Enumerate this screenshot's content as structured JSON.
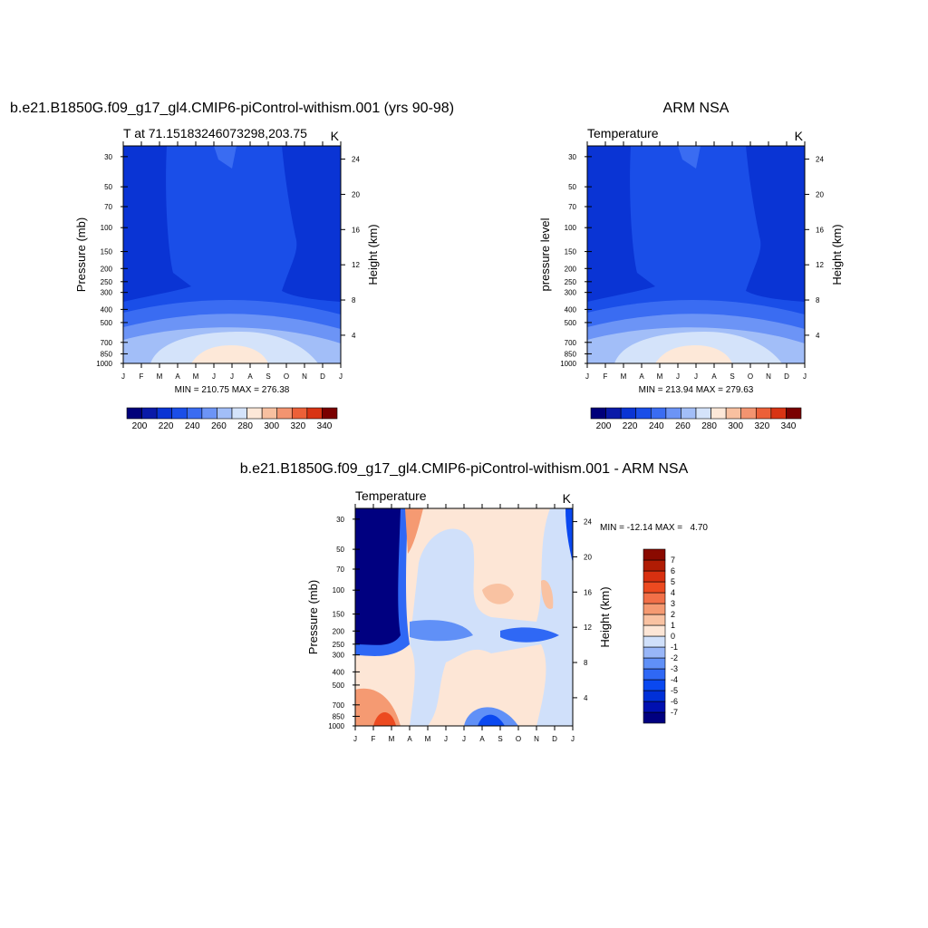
{
  "chart_data": [
    {
      "type": "contour",
      "title": "b.e21.B1850G.f09_g17_gl4.CMIP6-piControl-withism.001 (yrs 90-98)",
      "subtitle": "T at 71.15183246073298,203.75",
      "units": "K",
      "ylabel": "Pressure (mb)",
      "y2label": "Height (km)",
      "ylog": true,
      "ylim": [
        1000,
        25
      ],
      "yticks": [
        30,
        50,
        70,
        100,
        150,
        200,
        250,
        300,
        400,
        500,
        700,
        850,
        1000
      ],
      "y2lim": [
        0.8,
        25.5
      ],
      "y2ticks": [
        4,
        8,
        12,
        16,
        20,
        24
      ],
      "categories": [
        "J",
        "F",
        "M",
        "A",
        "M",
        "J",
        "J",
        "A",
        "S",
        "O",
        "N",
        "D",
        "J"
      ],
      "stats": "MIN = 210.75 MAX = 276.38",
      "colorbar": {
        "orientation": "horizontal",
        "labels": [
          200,
          220,
          240,
          260,
          280,
          300,
          320,
          340
        ],
        "colors": [
          "#00007a",
          "#0a1aa8",
          "#0a34d4",
          "#1a4ee8",
          "#3a6cf2",
          "#6c94f6",
          "#a2bef8",
          "#d4e3fa",
          "#fde8d8",
          "#f8c0a0",
          "#f39470",
          "#ec6038",
          "#d83414",
          "#7a0000"
        ]
      }
    },
    {
      "type": "contour",
      "title": "ARM NSA",
      "subtitle": "Temperature",
      "units": "K",
      "ylabel": "pressure level",
      "y2label": "Height (km)",
      "ylog": true,
      "ylim": [
        1000,
        25
      ],
      "yticks": [
        30,
        50,
        70,
        100,
        150,
        200,
        250,
        300,
        400,
        500,
        700,
        850,
        1000
      ],
      "y2lim": [
        0.8,
        25.5
      ],
      "y2ticks": [
        4,
        8,
        12,
        16,
        20,
        24
      ],
      "categories": [
        "J",
        "F",
        "M",
        "A",
        "M",
        "J",
        "J",
        "A",
        "S",
        "O",
        "N",
        "D",
        "J"
      ],
      "stats": "MIN = 213.94 MAX = 279.63",
      "colorbar": {
        "orientation": "horizontal",
        "labels": [
          200,
          220,
          240,
          260,
          280,
          300,
          320,
          340
        ],
        "colors": [
          "#00007a",
          "#0a1aa8",
          "#0a34d4",
          "#1a4ee8",
          "#3a6cf2",
          "#6c94f6",
          "#a2bef8",
          "#d4e3fa",
          "#fde8d8",
          "#f8c0a0",
          "#f39470",
          "#ec6038",
          "#d83414",
          "#7a0000"
        ]
      }
    },
    {
      "type": "contour",
      "title": "b.e21.B1850G.f09_g17_gl4.CMIP6-piControl-withism.001 - ARM NSA",
      "subtitle": "Temperature",
      "units": "K",
      "ylabel": "Pressure (mb)",
      "y2label": "Height (km)",
      "ylog": true,
      "ylim": [
        1000,
        25
      ],
      "yticks": [
        30,
        50,
        70,
        100,
        150,
        200,
        250,
        300,
        400,
        500,
        700,
        850,
        1000
      ],
      "y2lim": [
        0.8,
        25.5
      ],
      "y2ticks": [
        4,
        8,
        12,
        16,
        20,
        24
      ],
      "categories": [
        "J",
        "F",
        "M",
        "A",
        "M",
        "J",
        "J",
        "A",
        "S",
        "O",
        "N",
        "D",
        "J"
      ],
      "stats": "MIN = -12.14 MAX =   4.70",
      "colorbar": {
        "orientation": "vertical",
        "labels": [
          7,
          6,
          5,
          4,
          3,
          2,
          1,
          0,
          -1,
          -2,
          -3,
          -4,
          -5,
          -6,
          -7
        ],
        "colors": [
          "#000080",
          "#0010b0",
          "#0030d8",
          "#0a48f0",
          "#2f68f5",
          "#6090f7",
          "#98b6f8",
          "#d0e0fa",
          "#fde6d6",
          "#f9c2a2",
          "#f59a72",
          "#f27048",
          "#ec4a20",
          "#d83010",
          "#b01c04",
          "#8a0a00"
        ]
      }
    }
  ]
}
